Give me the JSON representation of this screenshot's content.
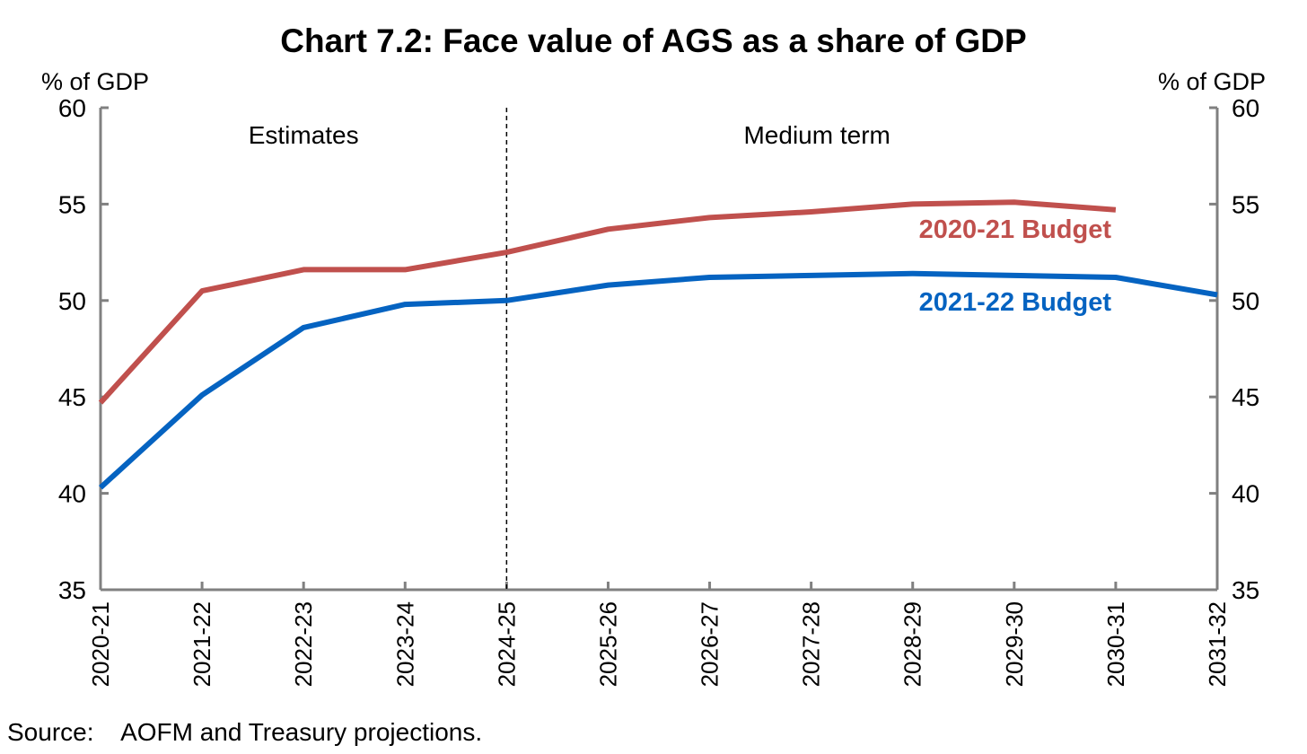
{
  "chart_data": {
    "type": "line",
    "title": "Chart 7.2: Face value of AGS as a share of GDP",
    "ylabel_left": "% of GDP",
    "ylabel_right": "% of GDP",
    "ylim": [
      35,
      60
    ],
    "yticks": [
      35,
      40,
      45,
      50,
      55,
      60
    ],
    "categories": [
      "2020-21",
      "2021-22",
      "2022-23",
      "2023-24",
      "2024-25",
      "2025-26",
      "2026-27",
      "2027-28",
      "2028-29",
      "2029-30",
      "2030-31",
      "2031-32"
    ],
    "regions": [
      {
        "label": "Estimates"
      },
      {
        "label": "Medium term"
      }
    ],
    "divider_after_category": "2024-25",
    "series": [
      {
        "name": "2020-21 Budget",
        "color": "#C0504D",
        "values": [
          44.7,
          50.5,
          51.6,
          51.6,
          52.5,
          53.7,
          54.3,
          54.6,
          55.0,
          55.1,
          54.7,
          null
        ]
      },
      {
        "name": "2021-22 Budget",
        "color": "#0563C1",
        "values": [
          40.3,
          45.1,
          48.6,
          49.8,
          50.0,
          50.8,
          51.2,
          51.3,
          51.4,
          51.3,
          51.2,
          50.3
        ]
      }
    ],
    "grid": false,
    "legend": "inline labels near lines"
  },
  "footer": {
    "source": "Source:    AOFM and Treasury projections."
  }
}
